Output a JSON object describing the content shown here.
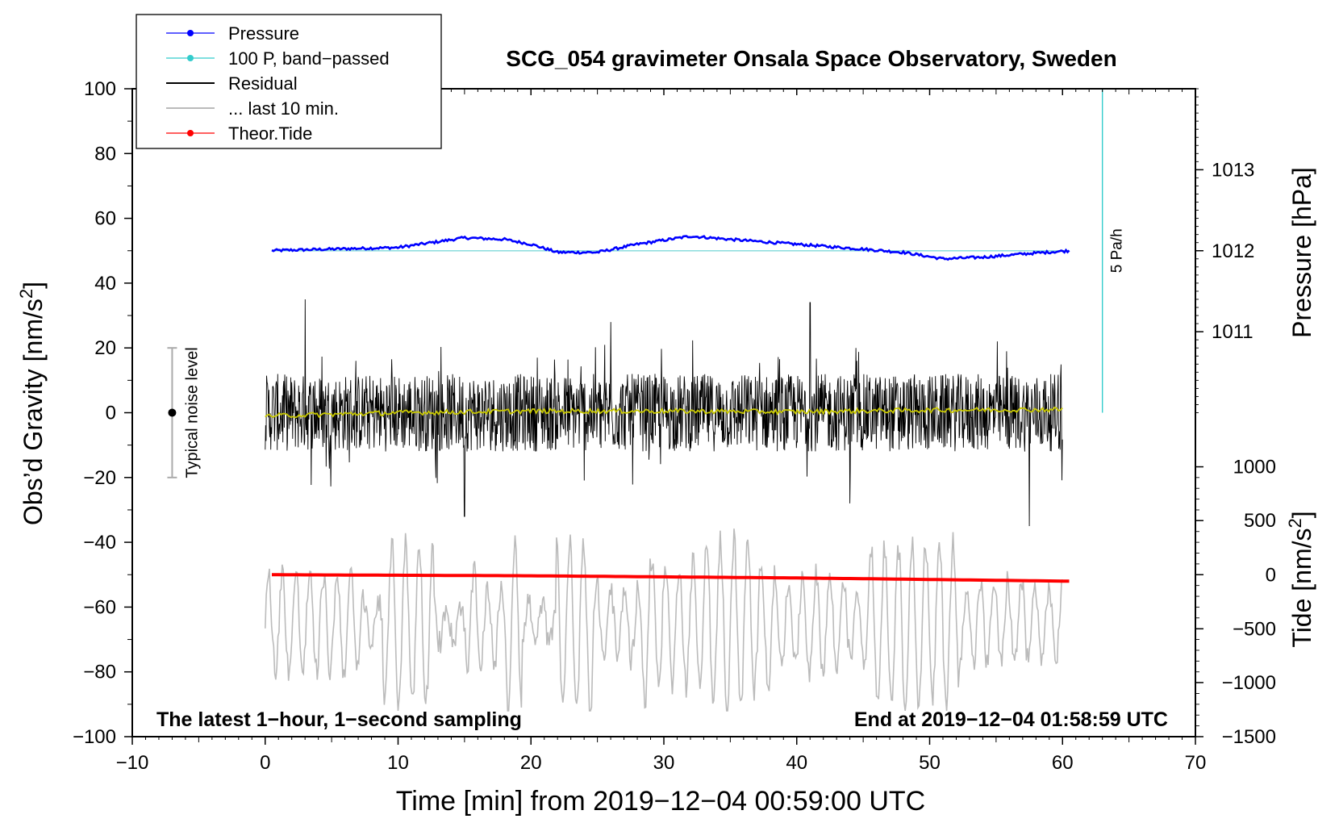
{
  "chart_data": {
    "type": "line",
    "title": "SCG_054 gravimeter Onsala Space Observatory, Sweden",
    "xlabel": "Time [min] from 2019−12−04 00:59:00 UTC",
    "ylabel_left": "Obs’d Gravity [nm/s",
    "ylabel_left_sup": "2",
    "ylabel_left_end": "]",
    "ylabel_pressure": "Pressure [hPa]",
    "ylabel_tide": "Tide [nm/s",
    "ylabel_tide_sup": "2",
    "ylabel_tide_end": "]",
    "xlim": [
      -10,
      70
    ],
    "ylim_left": [
      -100,
      100
    ],
    "x_ticks": [
      -10,
      0,
      10,
      20,
      30,
      40,
      50,
      60,
      70
    ],
    "x_tick_labels": [
      "−10",
      "0",
      "10",
      "20",
      "30",
      "40",
      "50",
      "60",
      "70"
    ],
    "y_ticks_left": [
      100,
      80,
      60,
      40,
      20,
      0,
      -20,
      -40,
      -60,
      -80,
      -100
    ],
    "y_tick_labels_left": [
      "100",
      "80",
      "60",
      "40",
      "20",
      "0",
      "−20",
      "−40",
      "−60",
      "−80",
      "−100"
    ],
    "pressure_axis": {
      "ticks": [
        1013,
        1012,
        1011
      ],
      "tick_labels": [
        "1013",
        "1012",
        "1011"
      ],
      "left_equiv": [
        75,
        50,
        25
      ]
    },
    "tide_axis": {
      "ticks": [
        1000,
        500,
        0,
        -500,
        -1000,
        -1500
      ],
      "tick_labels": [
        "1000",
        "500",
        "0",
        "−500",
        "−1000",
        "−1500"
      ],
      "left_equiv": [
        -16.7,
        -33.3,
        -50,
        -66.7,
        -83.3,
        -100
      ]
    },
    "legend": {
      "position": "top-left",
      "entries": [
        {
          "label": "Pressure",
          "color": "#0000ff",
          "style": "line-dot"
        },
        {
          "label": "100 P, band−passed",
          "color": "#33cccc",
          "style": "line-dot"
        },
        {
          "label": "Residual",
          "color": "#000000",
          "style": "line"
        },
        {
          "label": "... last 10 min.",
          "color": "#bbbbbb",
          "style": "line"
        },
        {
          "label": "Theor.Tide",
          "color": "#ff0000",
          "style": "line-dot"
        }
      ]
    },
    "annotations": {
      "noise_label": "Typical noise level",
      "noise_bar_range": [
        -20,
        20
      ],
      "noise_bar_x": -7,
      "rate_label": "5 Pa/h",
      "rate_bar_x": 63,
      "rate_bar_range": [
        0,
        100
      ],
      "bottom_left": "The latest 1−hour, 1−second sampling",
      "bottom_right": "End at 2019−12−04 01:58:59 UTC"
    },
    "series": [
      {
        "name": "Pressure",
        "color": "#0000ff",
        "unit": "hPa",
        "x": [
          0,
          5,
          10,
          15,
          18,
          20,
          22,
          25,
          28,
          32,
          35,
          40,
          45,
          48,
          51,
          54,
          57,
          60.5
        ],
        "values": [
          1012.0,
          1012.02,
          1012.04,
          1012.16,
          1012.14,
          1012.08,
          1011.98,
          1011.98,
          1012.08,
          1012.18,
          1012.14,
          1012.08,
          1012.02,
          1011.98,
          1011.9,
          1011.92,
          1011.96,
          1012.0
        ]
      },
      {
        "name": "100 P, band-passed",
        "color": "#33cccc",
        "unit": "nm/s2",
        "x": [
          0,
          60.5
        ],
        "values": [
          50,
          50
        ]
      },
      {
        "name": "Residual",
        "color": "#000000",
        "unit": "nm/s2",
        "x_range": [
          0,
          60
        ],
        "noise_amplitude": 12,
        "peak_x": [
          3,
          15,
          26,
          41,
          44,
          57.5
        ],
        "peak_values": [
          35,
          -32,
          28,
          34,
          -28,
          -35
        ]
      },
      {
        "name": "Residual smoothed",
        "color": "#c8c800",
        "unit": "nm/s2",
        "x": [
          0,
          10,
          20,
          30,
          40,
          50,
          60
        ],
        "values": [
          -1,
          0,
          0.5,
          0.5,
          0.3,
          0.8,
          1
        ]
      },
      {
        "name": "... last 10 min.",
        "color": "#bbbbbb",
        "unit": "nm/s2",
        "x_range": [
          0,
          60
        ],
        "center": -65,
        "min": -92,
        "max": -35
      },
      {
        "name": "Theor.Tide",
        "color": "#ff0000",
        "unit": "nm/s2",
        "x": [
          0,
          20,
          40,
          60.5
        ],
        "values": [
          0,
          -10,
          -30,
          -60
        ]
      }
    ]
  }
}
